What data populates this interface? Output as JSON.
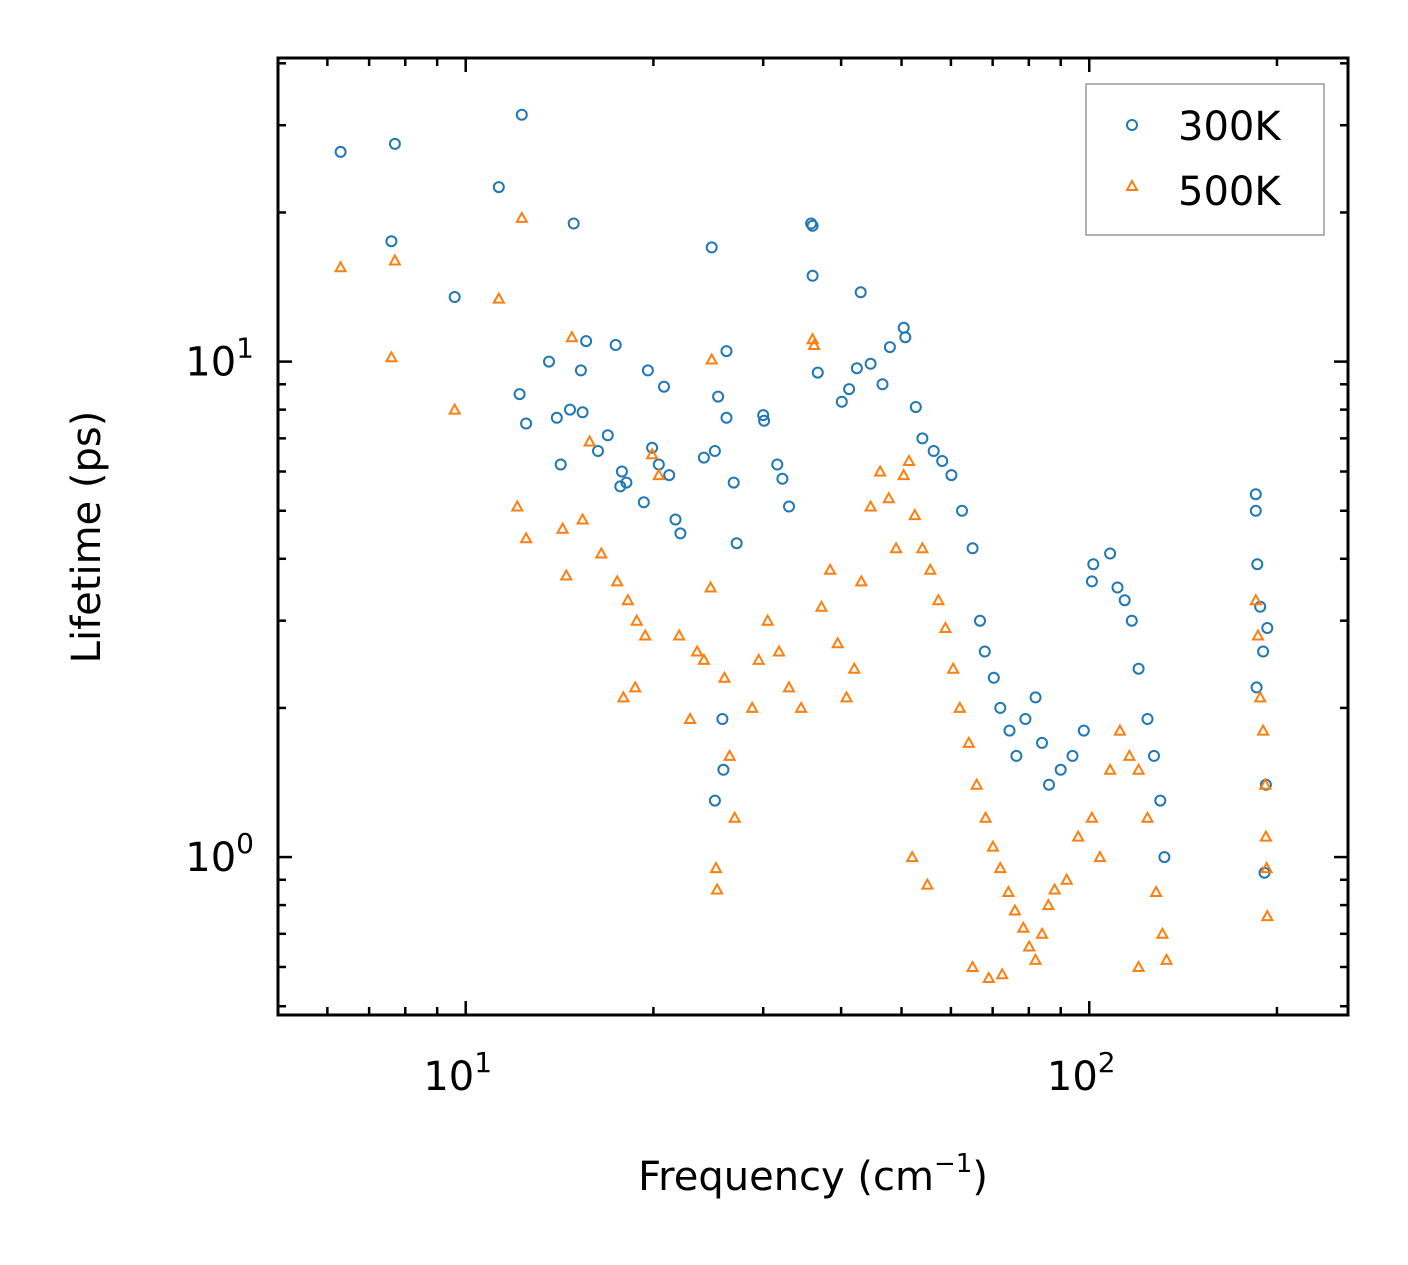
{
  "chart_data": {
    "type": "scatter",
    "title": "",
    "xlabel": "Frequency (cm⁻¹)",
    "xlabel_base": "Frequency (cm",
    "xlabel_sup": "−1",
    "xlabel_end": ")",
    "ylabel": "Lifetime (ps)",
    "xscale": "log",
    "yscale": "log",
    "xlim": [
      5.0,
      260.0
    ],
    "ylim": [
      0.48,
      41.0
    ],
    "x_major_ticks": [
      {
        "value": 10,
        "base": "10",
        "exp": "1"
      },
      {
        "value": 100,
        "base": "10",
        "exp": "2"
      }
    ],
    "y_major_ticks": [
      {
        "value": 1,
        "base": "10",
        "exp": "0"
      },
      {
        "value": 10,
        "base": "10",
        "exp": "1"
      }
    ],
    "legend_position": "top-right",
    "colors": {
      "300K": "#1f77b4",
      "500K": "#ff7f0e"
    },
    "series": [
      {
        "name": "300K",
        "marker": "circle",
        "color": "#1f77b4",
        "points": [
          [
            6.3,
            26.5
          ],
          [
            7.7,
            27.5
          ],
          [
            7.6,
            17.5
          ],
          [
            9.6,
            13.5
          ],
          [
            11.3,
            22.5
          ],
          [
            12.3,
            31.5
          ],
          [
            14.9,
            19.0
          ],
          [
            15.6,
            11.0
          ],
          [
            17.4,
            10.8
          ],
          [
            13.6,
            10.0
          ],
          [
            15.3,
            9.6
          ],
          [
            12.2,
            8.6
          ],
          [
            12.5,
            7.5
          ],
          [
            14.0,
            7.7
          ],
          [
            14.7,
            8.0
          ],
          [
            15.4,
            7.9
          ],
          [
            16.9,
            7.1
          ],
          [
            16.3,
            6.6
          ],
          [
            14.2,
            6.2
          ],
          [
            17.8,
            6.0
          ],
          [
            18.1,
            5.7
          ],
          [
            17.7,
            5.6
          ],
          [
            19.6,
            9.6
          ],
          [
            20.8,
            8.9
          ],
          [
            19.9,
            6.7
          ],
          [
            20.4,
            6.2
          ],
          [
            21.2,
            5.9
          ],
          [
            21.7,
            4.8
          ],
          [
            22.1,
            4.5
          ],
          [
            19.3,
            5.2
          ],
          [
            24.8,
            17.0
          ],
          [
            26.2,
            10.5
          ],
          [
            25.4,
            8.5
          ],
          [
            26.2,
            7.7
          ],
          [
            24.1,
            6.4
          ],
          [
            25.1,
            6.6
          ],
          [
            26.9,
            5.7
          ],
          [
            27.2,
            4.3
          ],
          [
            30.0,
            7.8
          ],
          [
            30.1,
            7.6
          ],
          [
            31.6,
            6.2
          ],
          [
            32.2,
            5.8
          ],
          [
            33.0,
            5.1
          ],
          [
            36.0,
            14.9
          ],
          [
            35.8,
            19.0
          ],
          [
            36.0,
            18.8
          ],
          [
            36.7,
            9.5
          ],
          [
            43.0,
            13.8
          ],
          [
            40.1,
            8.3
          ],
          [
            41.2,
            8.8
          ],
          [
            42.4,
            9.7
          ],
          [
            44.6,
            9.9
          ],
          [
            46.6,
            9.0
          ],
          [
            47.9,
            10.7
          ],
          [
            50.4,
            11.7
          ],
          [
            50.7,
            11.2
          ],
          [
            52.7,
            8.1
          ],
          [
            54.0,
            7.0
          ],
          [
            56.3,
            6.6
          ],
          [
            58.1,
            6.3
          ],
          [
            60.1,
            5.9
          ],
          [
            62.5,
            5.0
          ],
          [
            65.0,
            4.2
          ],
          [
            66.8,
            3.0
          ],
          [
            68.0,
            2.6
          ],
          [
            70.3,
            2.3
          ],
          [
            72.0,
            2.0
          ],
          [
            74.5,
            1.8
          ],
          [
            76.4,
            1.6
          ],
          [
            79.0,
            1.9
          ],
          [
            82.0,
            2.1
          ],
          [
            84.0,
            1.7
          ],
          [
            86.2,
            1.4
          ],
          [
            90.0,
            1.5
          ],
          [
            94.0,
            1.6
          ],
          [
            98.0,
            1.8
          ],
          [
            101.5,
            3.9
          ],
          [
            101.0,
            3.6
          ],
          [
            108.0,
            4.1
          ],
          [
            111.0,
            3.5
          ],
          [
            114.0,
            3.3
          ],
          [
            117.0,
            3.0
          ],
          [
            120.0,
            2.4
          ],
          [
            124.0,
            1.9
          ],
          [
            127.0,
            1.6
          ],
          [
            130.0,
            1.3
          ],
          [
            132.0,
            1.0
          ],
          [
            25.8,
            1.9
          ],
          [
            25.9,
            1.5
          ],
          [
            25.1,
            1.3
          ],
          [
            185.0,
            5.4
          ],
          [
            185.0,
            5.0
          ],
          [
            186.0,
            3.9
          ],
          [
            188.0,
            3.2
          ],
          [
            190.0,
            2.6
          ],
          [
            193.0,
            2.9
          ],
          [
            192.0,
            1.4
          ],
          [
            191.0,
            0.93
          ],
          [
            185.5,
            2.2
          ]
        ]
      },
      {
        "name": "500K",
        "marker": "triangle",
        "color": "#ff7f0e",
        "points": [
          [
            6.3,
            15.5
          ],
          [
            7.7,
            16.0
          ],
          [
            7.6,
            10.2
          ],
          [
            9.6,
            8.0
          ],
          [
            11.3,
            13.4
          ],
          [
            12.3,
            19.5
          ],
          [
            12.1,
            5.1
          ],
          [
            12.5,
            4.4
          ],
          [
            14.3,
            4.6
          ],
          [
            14.5,
            3.7
          ],
          [
            15.4,
            4.8
          ],
          [
            15.8,
            6.9
          ],
          [
            16.5,
            4.1
          ],
          [
            17.5,
            3.6
          ],
          [
            18.2,
            3.3
          ],
          [
            18.8,
            3.0
          ],
          [
            19.4,
            2.8
          ],
          [
            17.9,
            2.1
          ],
          [
            18.7,
            2.2
          ],
          [
            14.8,
            11.2
          ],
          [
            22.0,
            2.8
          ],
          [
            23.5,
            2.6
          ],
          [
            24.7,
            3.5
          ],
          [
            24.1,
            2.5
          ],
          [
            24.8,
            10.1
          ],
          [
            22.9,
            1.9
          ],
          [
            19.9,
            6.5
          ],
          [
            20.4,
            5.9
          ],
          [
            26.0,
            2.3
          ],
          [
            26.5,
            1.6
          ],
          [
            27.0,
            1.2
          ],
          [
            25.2,
            0.95
          ],
          [
            25.3,
            0.86
          ],
          [
            28.8,
            2.0
          ],
          [
            29.5,
            2.5
          ],
          [
            30.5,
            3.0
          ],
          [
            31.8,
            2.6
          ],
          [
            33.0,
            2.2
          ],
          [
            34.5,
            2.0
          ],
          [
            36.0,
            11.1
          ],
          [
            36.2,
            10.8
          ],
          [
            37.2,
            3.2
          ],
          [
            38.4,
            3.8
          ],
          [
            39.5,
            2.7
          ],
          [
            40.8,
            2.1
          ],
          [
            42.0,
            2.4
          ],
          [
            43.1,
            3.6
          ],
          [
            44.6,
            5.1
          ],
          [
            46.2,
            6.0
          ],
          [
            47.7,
            5.3
          ],
          [
            49.0,
            4.2
          ],
          [
            50.4,
            5.9
          ],
          [
            51.4,
            6.3
          ],
          [
            52.5,
            4.9
          ],
          [
            54.0,
            4.2
          ],
          [
            55.6,
            3.8
          ],
          [
            57.3,
            3.3
          ],
          [
            58.8,
            2.9
          ],
          [
            60.5,
            2.4
          ],
          [
            62.0,
            2.0
          ],
          [
            64.1,
            1.7
          ],
          [
            66.0,
            1.4
          ],
          [
            68.2,
            1.2
          ],
          [
            70.1,
            1.05
          ],
          [
            72.0,
            0.95
          ],
          [
            74.2,
            0.85
          ],
          [
            76.0,
            0.78
          ],
          [
            78.4,
            0.72
          ],
          [
            80.1,
            0.66
          ],
          [
            82.0,
            0.62
          ],
          [
            84.0,
            0.7
          ],
          [
            88.0,
            0.86
          ],
          [
            92.0,
            0.9
          ],
          [
            96.0,
            1.1
          ],
          [
            101.0,
            1.2
          ],
          [
            104.0,
            1.0
          ],
          [
            108.0,
            1.5
          ],
          [
            112.0,
            1.8
          ],
          [
            116.0,
            1.6
          ],
          [
            120.0,
            1.5
          ],
          [
            124.0,
            1.2
          ],
          [
            128.0,
            0.85
          ],
          [
            131.0,
            0.7
          ],
          [
            133.0,
            0.62
          ],
          [
            65.0,
            0.6
          ],
          [
            69.0,
            0.57
          ],
          [
            72.5,
            0.58
          ],
          [
            86.0,
            0.8
          ],
          [
            185.0,
            3.3
          ],
          [
            186.5,
            2.8
          ],
          [
            188.0,
            2.1
          ],
          [
            190.0,
            1.8
          ],
          [
            191.5,
            1.4
          ],
          [
            192.0,
            1.1
          ],
          [
            192.5,
            0.95
          ],
          [
            193.0,
            0.76
          ],
          [
            52.0,
            1.0
          ],
          [
            55.0,
            0.88
          ],
          [
            120.0,
            0.6
          ]
        ]
      }
    ]
  }
}
